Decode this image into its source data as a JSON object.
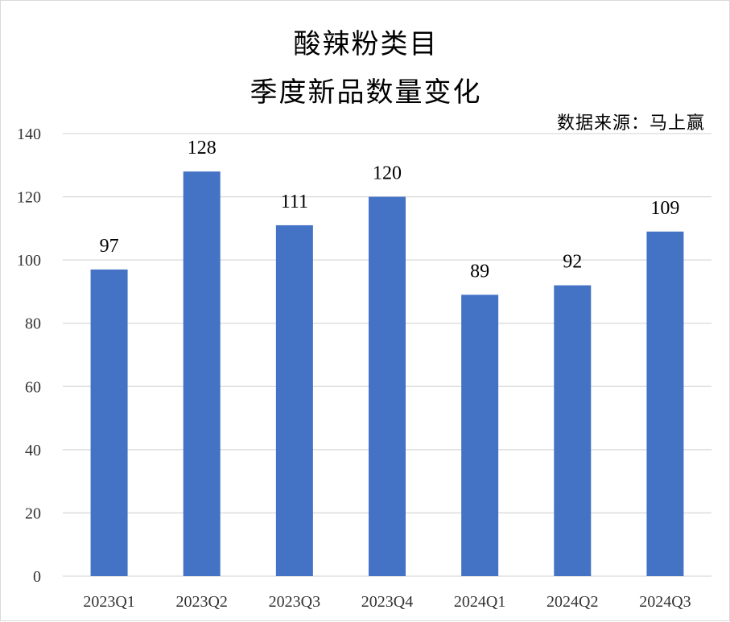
{
  "chart_data": {
    "type": "bar",
    "title": "酸辣粉类目",
    "subtitle": "季度新品数量变化",
    "source": "数据来源：马上赢",
    "categories": [
      "2023Q1",
      "2023Q2",
      "2023Q3",
      "2023Q4",
      "2024Q1",
      "2024Q2",
      "2024Q3"
    ],
    "values": [
      97,
      128,
      111,
      120,
      89,
      92,
      109
    ],
    "yticks": [
      "0",
      "20",
      "40",
      "60",
      "80",
      "100",
      "120",
      "140"
    ],
    "ylim": [
      0,
      140
    ],
    "grid": true,
    "legend": "none",
    "bar_color": "#4472C4",
    "grid_color": "#d9d9d9"
  }
}
